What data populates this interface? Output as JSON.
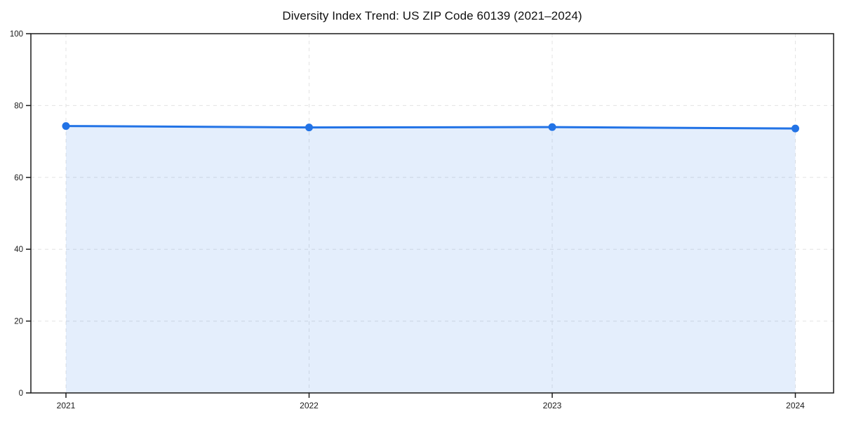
{
  "page": {
    "background": "#ffffff"
  },
  "chart_data": {
    "type": "area",
    "title": "Diversity Index Trend: US ZIP Code 60139 (2021–2024)",
    "x": [
      2021,
      2022,
      2023,
      2024
    ],
    "xtick_labels": [
      "2021",
      "2022",
      "2023",
      "2024"
    ],
    "values": [
      74.3,
      73.9,
      74.0,
      73.6
    ],
    "series_name": "Diversity Index",
    "xlabel": "",
    "ylabel": "",
    "ylim": [
      0,
      100
    ],
    "yticks": [
      0,
      20,
      40,
      60,
      80,
      100
    ],
    "grid": "dashed",
    "legend": "none",
    "line_color": "#2273e6",
    "marker_color": "#2273e6",
    "fill_opacity": 0.12,
    "grid_color": "#e3e3e3",
    "axis_color": "#1a1a1a",
    "tick_label_color": "#1a1a1a",
    "title_color": "#111111"
  }
}
